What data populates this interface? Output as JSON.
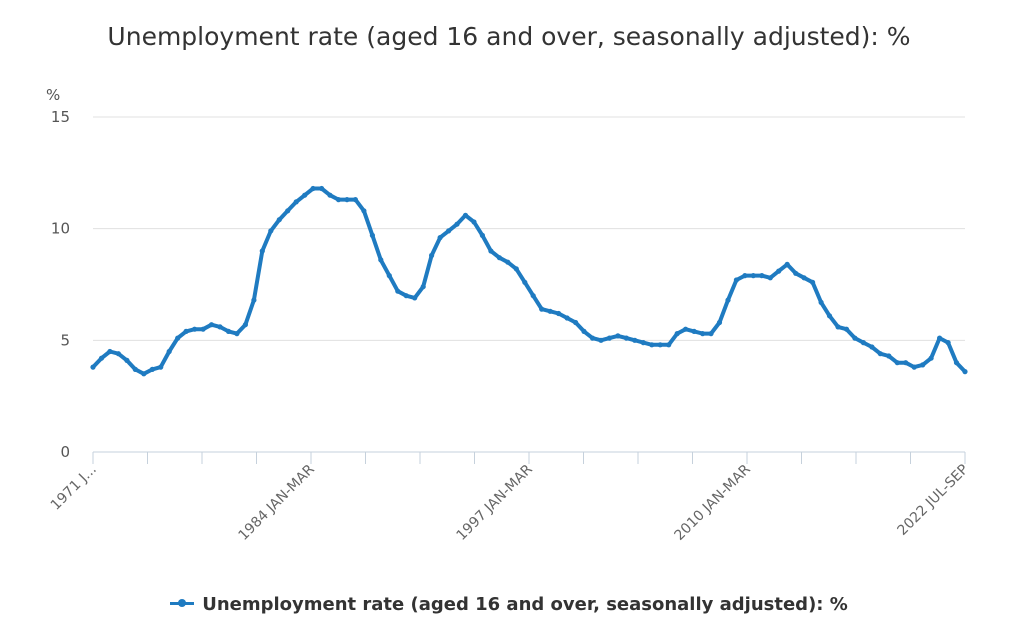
{
  "chart_data": {
    "type": "line",
    "title": "Unemployment rate (aged 16 and over, seasonally adjusted): %",
    "ylabel": "%",
    "ylim": [
      0,
      15
    ],
    "yticks": [
      "0",
      "5",
      "10",
      "15"
    ],
    "grid": true,
    "legend_position": "bottom",
    "x_tick_labels": [
      "1971 J...",
      "1984 JAN-MAR",
      "1997 JAN-MAR",
      "2010 JAN-MAR",
      "2022 JUL-SEP"
    ],
    "series": [
      {
        "name": "Unemployment rate (aged 16 and over, seasonally adjusted): %",
        "color": "#1f7bc1",
        "x": [
          1971.0,
          1971.5,
          1972.0,
          1972.5,
          1973.0,
          1973.5,
          1974.0,
          1974.5,
          1975.0,
          1975.5,
          1976.0,
          1976.5,
          1977.0,
          1977.5,
          1978.0,
          1978.5,
          1979.0,
          1979.5,
          1980.0,
          1980.5,
          1981.0,
          1981.5,
          1982.0,
          1982.5,
          1983.0,
          1983.5,
          1984.0,
          1984.5,
          1985.0,
          1985.5,
          1986.0,
          1986.5,
          1987.0,
          1987.5,
          1988.0,
          1988.5,
          1989.0,
          1989.5,
          1990.0,
          1990.5,
          1991.0,
          1991.5,
          1992.0,
          1992.5,
          1993.0,
          1993.5,
          1994.0,
          1994.5,
          1995.0,
          1995.5,
          1996.0,
          1996.5,
          1997.0,
          1997.5,
          1998.0,
          1998.5,
          1999.0,
          1999.5,
          2000.0,
          2000.5,
          2001.0,
          2001.5,
          2002.0,
          2002.5,
          2003.0,
          2003.5,
          2004.0,
          2004.5,
          2005.0,
          2005.5,
          2006.0,
          2006.5,
          2007.0,
          2007.5,
          2008.0,
          2008.5,
          2009.0,
          2009.5,
          2010.0,
          2010.5,
          2011.0,
          2011.5,
          2012.0,
          2012.5,
          2013.0,
          2013.5,
          2014.0,
          2014.5,
          2015.0,
          2015.5,
          2016.0,
          2016.5,
          2017.0,
          2017.5,
          2018.0,
          2018.5,
          2019.0,
          2019.5,
          2020.0,
          2020.5,
          2021.0,
          2021.5,
          2022.0,
          2022.5
        ],
        "values": [
          3.8,
          4.2,
          4.5,
          4.4,
          4.1,
          3.7,
          3.5,
          3.7,
          3.8,
          4.5,
          5.1,
          5.4,
          5.5,
          5.5,
          5.7,
          5.6,
          5.4,
          5.3,
          5.7,
          6.8,
          9.0,
          9.9,
          10.4,
          10.8,
          11.2,
          11.5,
          11.8,
          11.8,
          11.5,
          11.3,
          11.3,
          11.3,
          10.8,
          9.7,
          8.6,
          7.9,
          7.2,
          7.0,
          6.9,
          7.4,
          8.8,
          9.6,
          9.9,
          10.2,
          10.6,
          10.3,
          9.7,
          9.0,
          8.7,
          8.5,
          8.2,
          7.6,
          7.0,
          6.4,
          6.3,
          6.2,
          6.0,
          5.8,
          5.4,
          5.1,
          5.0,
          5.1,
          5.2,
          5.1,
          5.0,
          4.9,
          4.8,
          4.8,
          4.8,
          5.3,
          5.5,
          5.4,
          5.3,
          5.3,
          5.8,
          6.8,
          7.7,
          7.9,
          7.9,
          7.9,
          7.8,
          8.1,
          8.4,
          8.0,
          7.8,
          7.6,
          6.7,
          6.1,
          5.6,
          5.5,
          5.1,
          4.9,
          4.7,
          4.4,
          4.3,
          4.0,
          4.0,
          3.8,
          3.9,
          4.2,
          5.1,
          4.9,
          4.0,
          3.6
        ]
      }
    ]
  },
  "legend": {
    "label": "Unemployment rate (aged 16 and over, seasonally adjusted): %"
  }
}
